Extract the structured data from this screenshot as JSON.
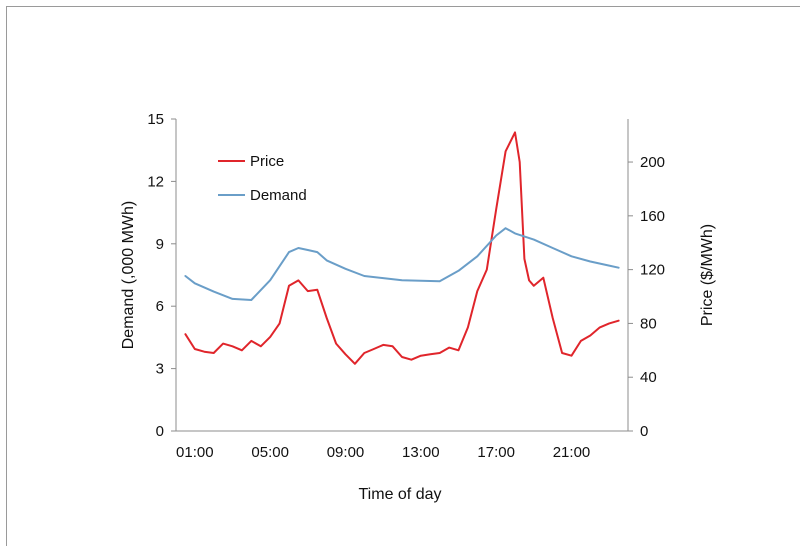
{
  "chart_data": {
    "type": "line",
    "title": "",
    "xlabel": "Time of day",
    "ylabel_left": "Demand (,000 MWh)",
    "ylabel_right": "Price ($/MWh)",
    "x_tick_labels": [
      "01:00",
      "05:00",
      "09:00",
      "13:00",
      "17:00",
      "21:00"
    ],
    "y_left_ticks": [
      "0",
      "3",
      "6",
      "9",
      "12",
      "15"
    ],
    "y_right_ticks": [
      "0",
      "40",
      "80",
      "120",
      "160",
      "200"
    ],
    "ylim_left": [
      0,
      15
    ],
    "ylim_right": [
      0,
      232
    ],
    "xlim": [
      0,
      24
    ],
    "grid": false,
    "legend_position": "top-left",
    "series": [
      {
        "name": "Price",
        "axis": "right",
        "color": "#e0252b",
        "x": [
          0.5,
          1,
          1.5,
          2,
          2.5,
          3,
          3.5,
          4,
          4.5,
          5,
          5.5,
          6,
          6.5,
          7,
          7.5,
          8,
          8.5,
          9,
          9.5,
          10,
          10.5,
          11,
          11.5,
          12,
          12.5,
          13,
          13.5,
          14,
          14.5,
          15,
          15.5,
          16,
          16.5,
          17,
          17.5,
          18,
          18.25,
          18.5,
          18.75,
          19,
          19.5,
          20,
          20.5,
          21,
          21.5,
          22,
          22.5,
          23,
          23.5
        ],
        "values": [
          72,
          61,
          59,
          58,
          65,
          63,
          60,
          67,
          63,
          70,
          80,
          108,
          112,
          104,
          105,
          84,
          65,
          57,
          50,
          58,
          61,
          64,
          63,
          55,
          53,
          56,
          57,
          58,
          62,
          60,
          77,
          104,
          120,
          165,
          208,
          222,
          200,
          128,
          112,
          108,
          114,
          84,
          58,
          56,
          67,
          71,
          77,
          80,
          82
        ]
      },
      {
        "name": "Demand",
        "axis": "left",
        "color": "#6a9ec8",
        "x": [
          0.5,
          1,
          2,
          3,
          4,
          5,
          6,
          6.5,
          7,
          7.5,
          8,
          9,
          10,
          11,
          12,
          13,
          14,
          15,
          16,
          17,
          17.5,
          18,
          19,
          20,
          21,
          22,
          23,
          23.5
        ],
        "values": [
          7.45,
          7.1,
          6.7,
          6.35,
          6.3,
          7.25,
          8.6,
          8.8,
          8.7,
          8.6,
          8.2,
          7.8,
          7.45,
          7.35,
          7.25,
          7.22,
          7.2,
          7.7,
          8.4,
          9.4,
          9.75,
          9.5,
          9.2,
          8.8,
          8.4,
          8.15,
          7.95,
          7.85
        ]
      }
    ]
  }
}
